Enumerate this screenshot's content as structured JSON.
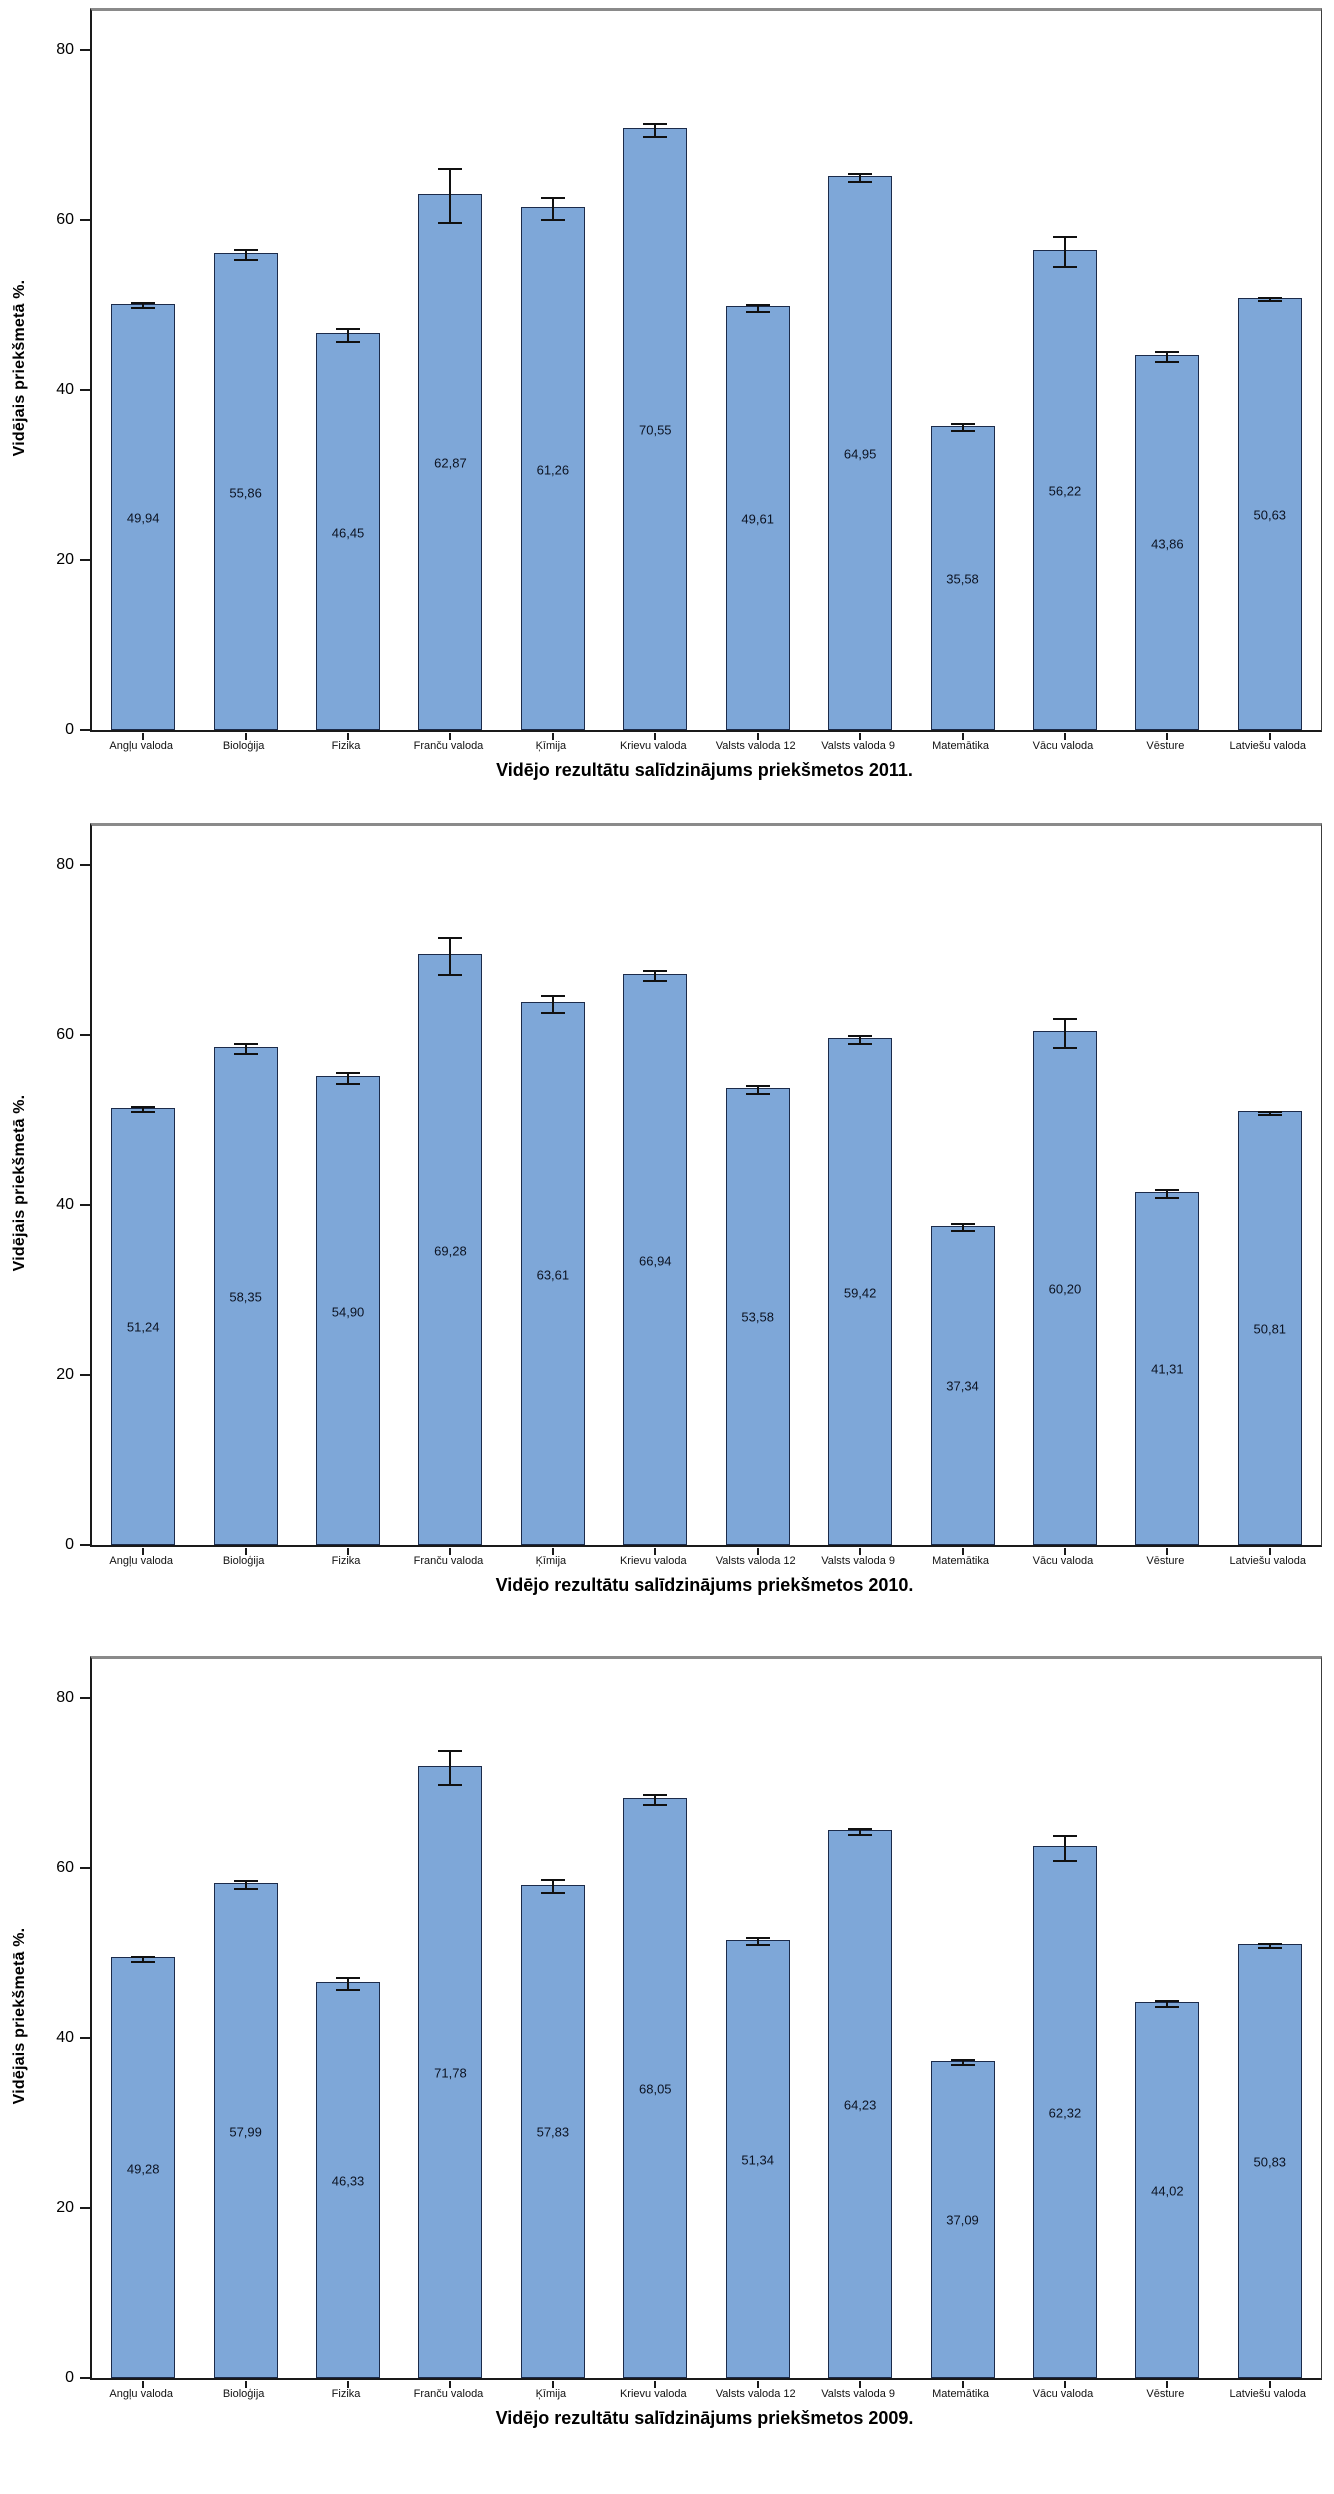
{
  "page": {
    "background": "#ffffff"
  },
  "colors": {
    "bar_fill": "#7ea7d8",
    "bar_border": "#1c2b4a",
    "error_bar": "#111111",
    "axis": "#1a1a1a",
    "frame_top_gray": "#8a8a8a",
    "text": "#000000"
  },
  "y_axis": {
    "label": "Vidējais priekšmetā %.",
    "ticks": [
      0,
      20,
      40,
      60,
      80
    ],
    "max": 84.6
  },
  "chart_data": [
    {
      "type": "bar",
      "title": "Vidējo rezultātu salīdzinājums priekšmetos 2011.",
      "ylabel": "Vidējais priekšmetā %.",
      "ylim": [
        0,
        84.6
      ],
      "grid": false,
      "legend": "none",
      "categories": [
        "Angļu valoda",
        "Bioloģija",
        "Fizika",
        "Franču valoda",
        "Ķīmija",
        "Krievu valoda",
        "Valsts valoda 12",
        "Valsts valoda 9",
        "Matemātika",
        "Vācu valoda",
        "Vēsture",
        "Latviešu valoda"
      ],
      "values": [
        49.94,
        55.86,
        46.45,
        62.87,
        61.26,
        70.55,
        49.61,
        64.95,
        35.58,
        56.22,
        43.86,
        50.63
      ],
      "value_labels": [
        "49,94",
        "55,86",
        "46,45",
        "62,87",
        "61,26",
        "70,55",
        "49,61",
        "64,95",
        "35,58",
        "56,22",
        "43,86",
        "50,63"
      ],
      "errors": [
        0.4,
        0.7,
        0.9,
        3.3,
        1.4,
        0.9,
        0.5,
        0.6,
        0.5,
        1.9,
        0.7,
        0.3
      ]
    },
    {
      "type": "bar",
      "title": "Vidējo rezultātu salīdzinājums priekšmetos 2010.",
      "ylabel": "Vidējais priekšmetā %.",
      "ylim": [
        0,
        84.6
      ],
      "grid": false,
      "legend": "none",
      "categories": [
        "Angļu valoda",
        "Bioloģija",
        "Fizika",
        "Franču valoda",
        "Ķīmija",
        "Krievu valoda",
        "Valsts valoda 12",
        "Valsts valoda 9",
        "Matemātika",
        "Vācu valoda",
        "Vēsture",
        "Latviešu valoda"
      ],
      "values": [
        51.24,
        58.35,
        54.9,
        69.28,
        63.61,
        66.94,
        53.58,
        59.42,
        37.34,
        60.2,
        41.31,
        50.81
      ],
      "value_labels": [
        "51,24",
        "58,35",
        "54,90",
        "69,28",
        "63,61",
        "66,94",
        "53,58",
        "59,42",
        "37,34",
        "60,20",
        "41,31",
        "50,81"
      ],
      "errors": [
        0.4,
        0.7,
        0.8,
        2.3,
        1.1,
        0.7,
        0.6,
        0.6,
        0.5,
        1.8,
        0.6,
        0.3
      ]
    },
    {
      "type": "bar",
      "title": "Vidējo rezultātu salīdzinājums priekšmetos 2009.",
      "ylabel": "Vidējais priekšmetā %.",
      "ylim": [
        0,
        84.6
      ],
      "grid": false,
      "legend": "none",
      "categories": [
        "Angļu valoda",
        "Bioloģija",
        "Fizika",
        "Franču valoda",
        "Ķīmija",
        "Krievu valoda",
        "Valsts valoda 12",
        "Valsts valoda 9",
        "Matemātika",
        "Vācu valoda",
        "Vēsture",
        "Latviešu valoda"
      ],
      "values": [
        49.28,
        57.99,
        46.33,
        71.78,
        57.83,
        68.05,
        51.34,
        64.23,
        37.09,
        62.32,
        44.02,
        50.83
      ],
      "value_labels": [
        "49,28",
        "57,99",
        "46,33",
        "71,78",
        "57,83",
        "68,05",
        "51,34",
        "64,23",
        "37,09",
        "62,32",
        "44,02",
        "50,83"
      ],
      "errors": [
        0.4,
        0.6,
        0.8,
        2.1,
        0.9,
        0.7,
        0.5,
        0.5,
        0.4,
        1.6,
        0.5,
        0.3
      ]
    }
  ]
}
